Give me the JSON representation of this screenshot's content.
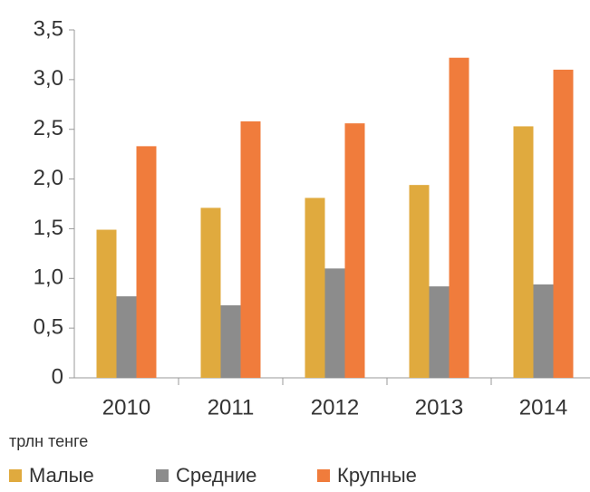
{
  "chart_data": {
    "type": "bar",
    "categories": [
      "2010",
      "2011",
      "2012",
      "2013",
      "2014"
    ],
    "series": [
      {
        "name": "Малые",
        "color": "#e0aa3e",
        "values": [
          1.49,
          1.71,
          1.81,
          1.94,
          2.53
        ]
      },
      {
        "name": "Средние",
        "color": "#8c8c8c",
        "values": [
          0.82,
          0.73,
          1.1,
          0.92,
          0.94
        ]
      },
      {
        "name": "Крупные",
        "color": "#f07c3c",
        "values": [
          2.33,
          2.58,
          2.56,
          3.22,
          3.1
        ]
      }
    ],
    "ylim": [
      0,
      3.5
    ],
    "yticks": [
      0,
      {
        "value": 0.5,
        "label": "0,5"
      },
      {
        "value": 1.0,
        "label": "1,0"
      },
      {
        "value": 1.5,
        "label": "1,5"
      },
      {
        "value": 2.0,
        "label": "2,0"
      },
      {
        "value": 2.5,
        "label": "2,5"
      },
      {
        "value": 3.0,
        "label": "3,0"
      },
      {
        "value": 3.5,
        "label": "3,5"
      }
    ],
    "y_axis_label": "трлн тенге",
    "grid": false,
    "legend": "bottom"
  }
}
